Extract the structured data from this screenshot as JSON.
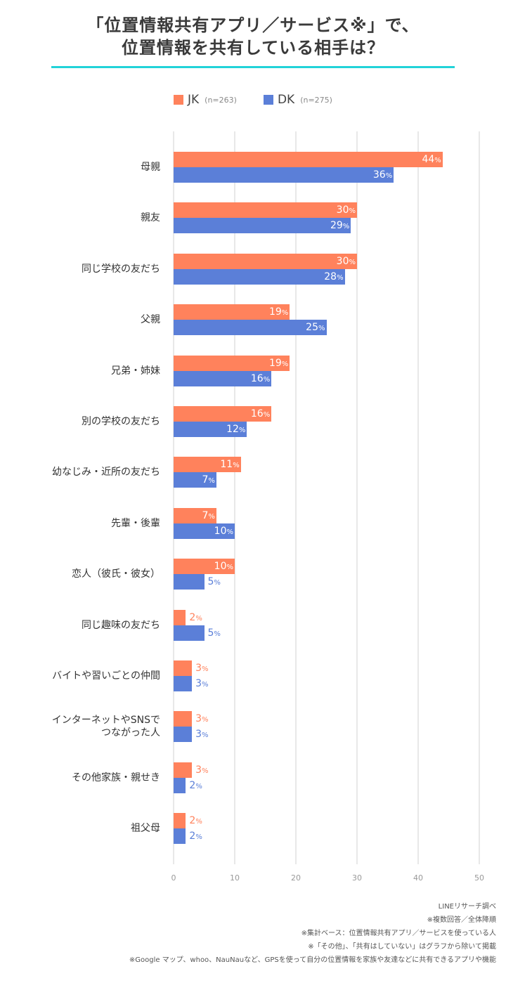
{
  "title": {
    "line1": "「位置情報共有アプリ／サービス※」で、",
    "line2": "位置情報を共有している相手は？"
  },
  "colors": {
    "jk": "#ff825c",
    "dk": "#5b7fd8",
    "accent_rule": "#22d3d8",
    "grid": "#e8e8e8"
  },
  "legend": [
    {
      "label": "JK",
      "n": "(n=263)",
      "color": "#ff825c"
    },
    {
      "label": "DK",
      "n": "(n=275)",
      "color": "#5b7fd8"
    }
  ],
  "chart_data": {
    "type": "bar",
    "orientation": "horizontal",
    "title": "「位置情報共有アプリ／サービス※」で、位置情報を共有している相手は？",
    "xlabel": "",
    "ylabel": "",
    "xlim": [
      0,
      50
    ],
    "xticks": [
      "0",
      "10",
      "20",
      "30",
      "40",
      "50"
    ],
    "grid": true,
    "legend_position": "top",
    "value_suffix": "%",
    "categories": [
      "母親",
      "親友",
      "同じ学校の友だち",
      "父親",
      "兄弟・姉妹",
      "別の学校の友だち",
      "幼なじみ・近所の友だち",
      "先輩・後輩",
      "恋人（彼氏・彼女）",
      "同じ趣味の友だち",
      "バイトや習いごとの仲間",
      "インターネットやSNSで\nつながった人",
      "その他家族・親せき",
      "祖父母"
    ],
    "series": [
      {
        "name": "JK (n=263)",
        "values": [
          44,
          30,
          30,
          19,
          19,
          16,
          11,
          7,
          10,
          2,
          3,
          3,
          3,
          2
        ]
      },
      {
        "name": "DK (n=275)",
        "values": [
          36,
          29,
          28,
          25,
          16,
          12,
          7,
          10,
          5,
          5,
          3,
          3,
          2,
          2
        ]
      }
    ]
  },
  "category_labels": [
    [
      "母親"
    ],
    [
      "親友"
    ],
    [
      "同じ学校の友だち"
    ],
    [
      "父親"
    ],
    [
      "兄弟・姉妹"
    ],
    [
      "別の学校の友だち"
    ],
    [
      "幼なじみ・近所の友だち"
    ],
    [
      "先輩・後輩"
    ],
    [
      "恋人（彼氏・彼女）"
    ],
    [
      "同じ趣味の友だち"
    ],
    [
      "バイトや習いごとの仲間"
    ],
    [
      "インターネットやSNSで",
      "つながった人"
    ],
    [
      "その他家族・親せき"
    ],
    [
      "祖父母"
    ]
  ],
  "notes": [
    "LINEリサーチ調べ",
    "※複数回答／全体降順",
    "※集計ベース：位置情報共有アプリ／サービスを使っている人",
    "※「その他」、「共有はしていない」はグラフから除いて掲載",
    "※Google マップ、whoo、NauNauなど、GPSを使って自分の位置情報を家族や友達などに共有できるアプリや機能"
  ]
}
